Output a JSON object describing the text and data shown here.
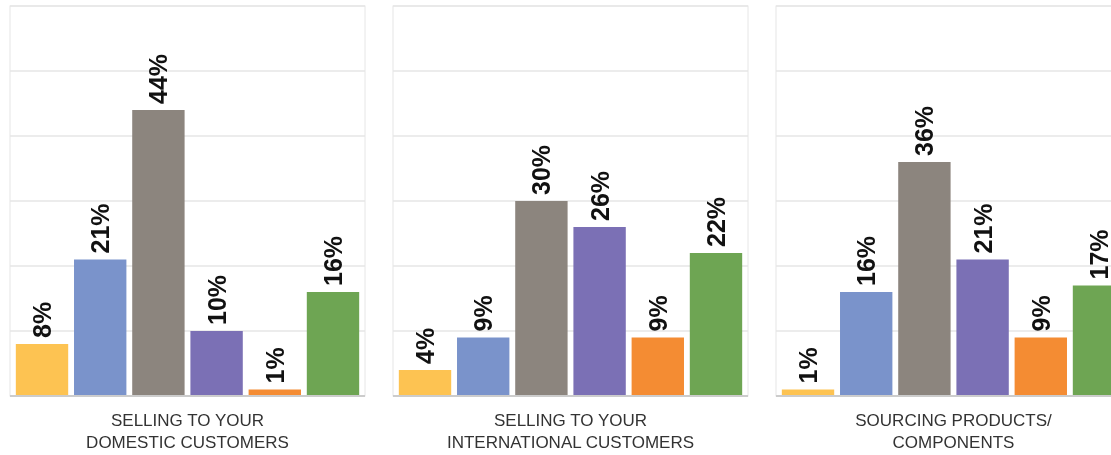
{
  "chart_data": [
    {
      "type": "bar",
      "xlabel": "SELLING TO YOUR\nDOMESTIC CUSTOMERS",
      "categories": [
        null,
        null,
        null,
        null,
        null,
        null
      ],
      "values": [
        8,
        21,
        44,
        10,
        1,
        16
      ],
      "colors": [
        "#fdc352",
        "#7a93cb",
        "#8c857e",
        "#7b70b5",
        "#f48c33",
        "#6ea553"
      ],
      "value_labels": [
        "8%",
        "21%",
        "44%",
        "10%",
        "1%",
        "16%"
      ],
      "ylim": [
        0,
        60
      ],
      "yticks": [
        {
          "value": 0,
          "label": null
        },
        {
          "value": 10,
          "label": null
        },
        {
          "value": 20,
          "label": null
        },
        {
          "value": 30,
          "label": null
        },
        {
          "value": 40,
          "label": null
        },
        {
          "value": 50,
          "label": null
        },
        {
          "value": 60,
          "label": null
        }
      ],
      "grid": "y"
    },
    {
      "type": "bar",
      "xlabel": "SELLING TO YOUR\nINTERNATIONAL CUSTOMERS",
      "categories": [
        null,
        null,
        null,
        null,
        null,
        null
      ],
      "values": [
        4,
        9,
        30,
        26,
        9,
        22
      ],
      "colors": [
        "#fdc352",
        "#7a93cb",
        "#8c857e",
        "#7b70b5",
        "#f48c33",
        "#6ea553"
      ],
      "value_labels": [
        "4%",
        "9%",
        "30%",
        "26%",
        "9%",
        "22%"
      ],
      "ylim": [
        0,
        60
      ],
      "yticks": [
        {
          "value": 0,
          "label": null
        },
        {
          "value": 10,
          "label": null
        },
        {
          "value": 20,
          "label": null
        },
        {
          "value": 30,
          "label": null
        },
        {
          "value": 40,
          "label": null
        },
        {
          "value": 50,
          "label": null
        },
        {
          "value": 60,
          "label": null
        }
      ],
      "grid": "y"
    },
    {
      "type": "bar",
      "xlabel": "SOURCING PRODUCTS/\nCOMPONENTS",
      "categories": [
        null,
        null,
        null,
        null,
        null,
        null
      ],
      "values": [
        1,
        16,
        36,
        21,
        9,
        17
      ],
      "colors": [
        "#fdc352",
        "#7a93cb",
        "#8c857e",
        "#7b70b5",
        "#f48c33",
        "#6ea553"
      ],
      "value_labels": [
        "1%",
        "16%",
        "36%",
        "21%",
        "9%",
        "17%"
      ],
      "ylim": [
        0,
        60
      ],
      "yticks": [
        {
          "value": 0,
          "label": null
        },
        {
          "value": 10,
          "label": null
        },
        {
          "value": 20,
          "label": null
        },
        {
          "value": 30,
          "label": null
        },
        {
          "value": 40,
          "label": null
        },
        {
          "value": 50,
          "label": null
        },
        {
          "value": 60,
          "label": null
        }
      ],
      "grid": "y"
    }
  ]
}
